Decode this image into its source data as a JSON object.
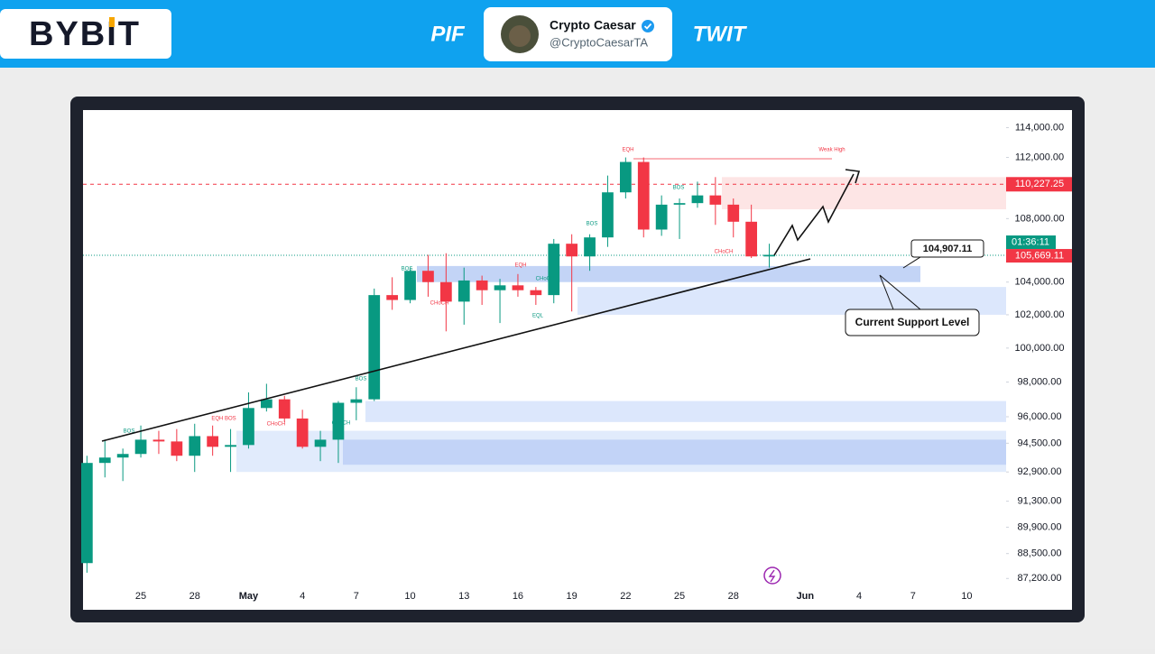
{
  "header": {
    "logo": "BYBIT",
    "left_tag": "PIF",
    "right_tag": "TWIT",
    "author_name": "Crypto Caesar",
    "author_handle": "@CryptoCaesarTA"
  },
  "chart_data": {
    "type": "candlestick",
    "log_scale": true,
    "categories": [
      null,
      null,
      null,
      "25",
      null,
      null,
      "28",
      null,
      null,
      "May",
      null,
      null,
      "4",
      null,
      null,
      "7",
      null,
      null,
      "10",
      null,
      null,
      "13",
      null,
      null,
      "16",
      null,
      null,
      "19",
      null,
      null,
      "22",
      null,
      null,
      "25",
      null,
      null,
      "28",
      null,
      null,
      null,
      "Jun",
      null,
      null,
      "4",
      null,
      null,
      "7",
      null,
      null,
      "10",
      null
    ],
    "open": [
      88000,
      93400,
      93700,
      93900,
      94700,
      94600,
      93800,
      94900,
      94300,
      94400,
      96500,
      97000,
      95900,
      94300,
      94700,
      96800,
      97000,
      103200,
      102900,
      104700,
      104000,
      102800,
      104100,
      103500,
      103800,
      103500,
      103200,
      106400,
      105600,
      106800,
      109700,
      111700,
      107300,
      108900,
      109000,
      109500,
      108900,
      107800,
      105600,
      null,
      null,
      null,
      null,
      null,
      null,
      null,
      null,
      null,
      null,
      null,
      null
    ],
    "high": [
      93800,
      94700,
      94200,
      95500,
      95200,
      95300,
      95600,
      95500,
      95300,
      97400,
      97900,
      97200,
      96400,
      95200,
      96900,
      97700,
      103600,
      104300,
      104900,
      105700,
      105800,
      104900,
      104400,
      104200,
      104500,
      103700,
      106700,
      107000,
      107000,
      110800,
      112000,
      112000,
      109500,
      109300,
      110400,
      110700,
      109300,
      108900,
      106400,
      null,
      null,
      null,
      null,
      null,
      null,
      null,
      null,
      null,
      null,
      null,
      null
    ],
    "low": [
      87500,
      92600,
      92400,
      93700,
      93900,
      93500,
      92900,
      93800,
      92900,
      94200,
      96300,
      95700,
      94200,
      93500,
      93400,
      95800,
      96900,
      102300,
      102700,
      103100,
      101000,
      101400,
      102600,
      101500,
      103100,
      102600,
      102700,
      102200,
      104700,
      106200,
      109300,
      106800,
      106900,
      106700,
      108700,
      107600,
      106800,
      105500,
      104900,
      null,
      null,
      null,
      null,
      null,
      null,
      null,
      null,
      null,
      null,
      null,
      null
    ],
    "close": [
      93400,
      93700,
      93900,
      94700,
      94600,
      93800,
      94900,
      94300,
      94400,
      96500,
      97000,
      95900,
      94300,
      94700,
      96800,
      97000,
      103200,
      102900,
      104700,
      104000,
      102800,
      104100,
      103500,
      103800,
      103500,
      103200,
      106400,
      105600,
      106800,
      109700,
      111700,
      107300,
      108900,
      109000,
      109500,
      108900,
      107800,
      105600,
      105700,
      null,
      null,
      null,
      null,
      null,
      null,
      null,
      null,
      null,
      null,
      null,
      null
    ],
    "up_color": "#089981",
    "down_color": "#f23645",
    "ylim": [
      86700,
      115200
    ],
    "yticks": [
      {
        "value": 114000,
        "label": "114,000.00"
      },
      {
        "value": 112000,
        "label": "112,000.00"
      },
      {
        "value": 108000,
        "label": "108,000.00"
      },
      {
        "value": 104000,
        "label": "104,000.00"
      },
      {
        "value": 102000,
        "label": "102,000.00"
      },
      {
        "value": 100000,
        "label": "100,000.00"
      },
      {
        "value": 98000,
        "label": "98,000.00"
      },
      {
        "value": 96000,
        "label": "96,000.00"
      },
      {
        "value": 94500,
        "label": "94,500.00"
      },
      {
        "value": 92900,
        "label": "92,900.00"
      },
      {
        "value": 91300,
        "label": "91,300.00"
      },
      {
        "value": 89900,
        "label": "89,900.00"
      },
      {
        "value": 88500,
        "label": "88,500.00"
      },
      {
        "value": 87200,
        "label": "87,200.00"
      }
    ],
    "zones": [
      {
        "low": 104000,
        "high": 105000,
        "color": "#b9cdf5"
      },
      {
        "low": 102000,
        "high": 103700,
        "color": "#d6e3fb"
      },
      {
        "low": 95700,
        "high": 96900,
        "color": "#d6e3fb"
      },
      {
        "low": 92900,
        "high": 95200,
        "color": "#dce7fc"
      },
      {
        "low": 93300,
        "high": 94700,
        "color": "#bccff6"
      },
      {
        "low": 108600,
        "high": 110700,
        "color": "#fde0e0"
      }
    ],
    "current_price": {
      "value": 105669.11,
      "label": "105,669.11"
    },
    "countdown": "01:36:11",
    "level_line": {
      "value": 110227.25,
      "label": "110,227.25"
    },
    "callout": {
      "value": 104907.11,
      "label": "104,907.11"
    },
    "support_label": "Current Support Level",
    "smc_labels": [
      {
        "text": "EQH",
        "color": "#f23645"
      },
      {
        "text": "Weak High",
        "color": "#f23645"
      },
      {
        "text": "BOS",
        "color": "#089981"
      },
      {
        "text": "EQH",
        "color": "#f23645"
      },
      {
        "text": "CHoCH",
        "color": "#f23645"
      },
      {
        "text": "CHoCH",
        "color": "#089981"
      },
      {
        "text": "EQL",
        "color": "#089981"
      },
      {
        "text": "BOS",
        "color": "#089981"
      },
      {
        "text": "BOS",
        "color": "#089981"
      },
      {
        "text": "CHoCH",
        "color": "#f23645"
      },
      {
        "text": "BOS",
        "color": "#089981"
      },
      {
        "text": "CHoCH",
        "color": "#089981"
      },
      {
        "text": "CHoCH",
        "color": "#f23645"
      },
      {
        "text": "EQH BOS",
        "color": "#f23645"
      },
      {
        "text": "BOS",
        "color": "#089981"
      }
    ]
  }
}
